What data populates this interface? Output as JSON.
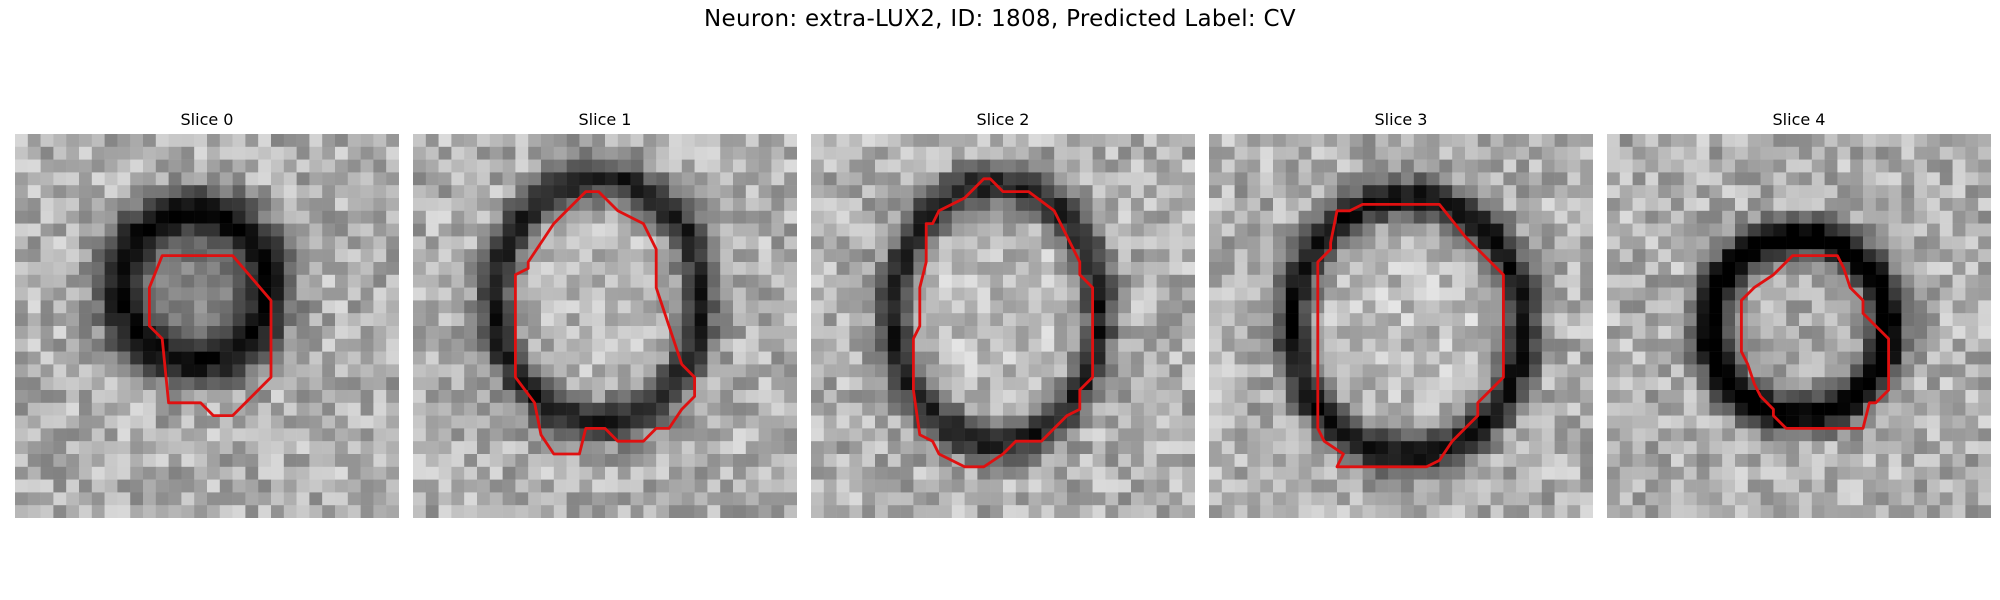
{
  "figure": {
    "suptitle": "Neuron: extra-LUX2, ID: 1808, Predicted Label: CV",
    "contour_color": "#e01010",
    "slices": [
      {
        "title": "Slice 0"
      },
      {
        "title": "Slice 1"
      },
      {
        "title": "Slice 2"
      },
      {
        "title": "Slice 3"
      },
      {
        "title": "Slice 4"
      }
    ]
  }
}
